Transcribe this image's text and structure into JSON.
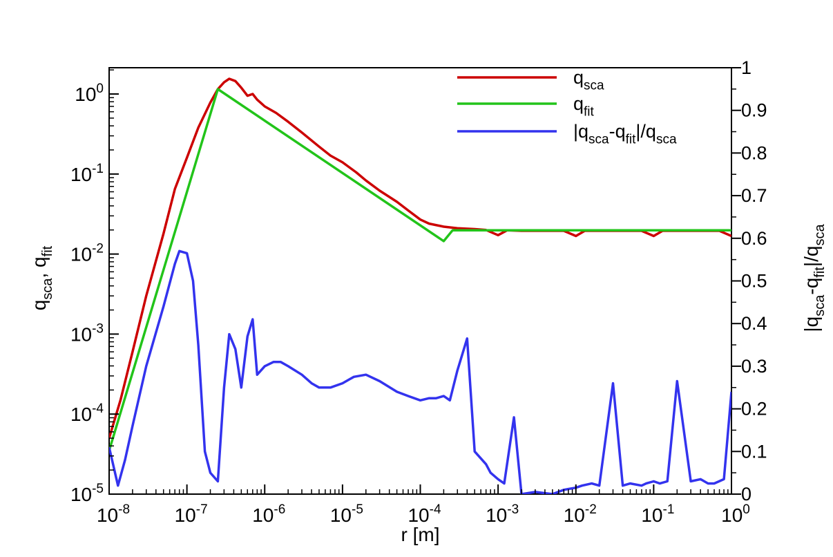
{
  "chart_data": {
    "type": "line",
    "xlabel": "r [m]",
    "ylabel_left": {
      "parts": [
        [
          "q",
          0
        ],
        [
          "sca",
          1
        ],
        [
          ", q",
          0
        ],
        [
          "fit",
          1
        ]
      ]
    },
    "ylabel_right": {
      "parts": [
        [
          "|q",
          0
        ],
        [
          "sca",
          1
        ],
        [
          "-q",
          0
        ],
        [
          "fit",
          1
        ],
        [
          "|/q",
          0
        ],
        [
          "sca",
          1
        ]
      ]
    },
    "x_scale": "log",
    "xlim": [
      1e-08,
      1
    ],
    "x_ticks": [
      {
        "value": 1e-08,
        "base": "10",
        "exp": "-8"
      },
      {
        "value": 1e-07,
        "base": "10",
        "exp": "-7"
      },
      {
        "value": 1e-06,
        "base": "10",
        "exp": "-6"
      },
      {
        "value": 1e-05,
        "base": "10",
        "exp": "-5"
      },
      {
        "value": 0.0001,
        "base": "10",
        "exp": "-4"
      },
      {
        "value": 0.001,
        "base": "10",
        "exp": "-3"
      },
      {
        "value": 0.01,
        "base": "10",
        "exp": "-2"
      },
      {
        "value": 0.1,
        "base": "10",
        "exp": "-1"
      },
      {
        "value": 1,
        "base": "10",
        "exp": "0"
      }
    ],
    "y_left_scale": "log",
    "y_left_lim": [
      1e-05,
      2.13
    ],
    "y_left_ticks": [
      {
        "value": 1e-05,
        "base": "10",
        "exp": "-5"
      },
      {
        "value": 0.0001,
        "base": "10",
        "exp": "-4"
      },
      {
        "value": 0.001,
        "base": "10",
        "exp": "-3"
      },
      {
        "value": 0.01,
        "base": "10",
        "exp": "-2"
      },
      {
        "value": 0.1,
        "base": "10",
        "exp": "-1"
      },
      {
        "value": 1,
        "base": "10",
        "exp": "0"
      }
    ],
    "y_right_scale": "linear",
    "y_right_lim": [
      0,
      1
    ],
    "y_right_ticks": [
      "0",
      "0.1",
      "0.2",
      "0.3",
      "0.4",
      "0.5",
      "0.6",
      "0.7",
      "0.8",
      "0.9",
      "1"
    ],
    "y_right_tick_values": [
      0,
      0.1,
      0.2,
      0.3,
      0.4,
      0.5,
      0.6,
      0.7,
      0.8,
      0.9,
      1
    ],
    "grid": false,
    "legend_position": "top-right",
    "series": [
      {
        "name_parts": [
          [
            "q",
            0
          ],
          [
            "sca",
            1
          ]
        ],
        "color": "#cc0000",
        "axis": "left",
        "x": [
          1e-08,
          1.4e-08,
          2e-08,
          3e-08,
          5e-08,
          7e-08,
          1e-07,
          1.4e-07,
          2e-07,
          2.5e-07,
          3e-07,
          3.5e-07,
          4.2e-07,
          5e-07,
          6e-07,
          7e-07,
          8e-07,
          1e-06,
          1.4e-06,
          2e-06,
          3e-06,
          5e-06,
          7e-06,
          1e-05,
          1.5e-05,
          2e-05,
          3e-05,
          5e-05,
          7e-05,
          0.0001,
          0.00013,
          0.0002,
          0.0003,
          0.0005,
          0.0007,
          0.001,
          0.0013,
          0.002,
          0.003,
          0.005,
          0.007,
          0.01,
          0.013,
          0.02,
          0.03,
          0.05,
          0.07,
          0.1,
          0.13,
          0.2,
          0.3,
          0.5,
          0.7,
          1
        ],
        "y": [
          5e-05,
          0.00015,
          0.0006,
          0.003,
          0.018,
          0.065,
          0.16,
          0.38,
          0.78,
          1.15,
          1.4,
          1.55,
          1.45,
          1.2,
          0.95,
          1.0,
          0.85,
          0.7,
          0.58,
          0.45,
          0.33,
          0.22,
          0.17,
          0.14,
          0.105,
          0.083,
          0.062,
          0.045,
          0.035,
          0.027,
          0.024,
          0.022,
          0.021,
          0.0205,
          0.02,
          0.0172,
          0.0198,
          0.0195,
          0.0195,
          0.0195,
          0.0195,
          0.0168,
          0.0195,
          0.0195,
          0.0195,
          0.0195,
          0.0195,
          0.0168,
          0.0195,
          0.0195,
          0.0195,
          0.0195,
          0.0195,
          0.0168
        ]
      },
      {
        "name_parts": [
          [
            "q",
            0
          ],
          [
            "fit",
            1
          ]
        ],
        "color": "#22c41a",
        "axis": "left",
        "x": [
          1e-08,
          2.5e-07,
          0.0002,
          0.00026,
          1
        ],
        "y": [
          3.5e-05,
          1.15,
          0.0145,
          0.0198,
          0.0198
        ]
      },
      {
        "name_parts": [
          [
            "|q",
            0
          ],
          [
            "sca",
            1
          ],
          [
            "-q",
            0
          ],
          [
            "fit",
            1
          ],
          [
            "|/q",
            0
          ],
          [
            "sca",
            1
          ]
        ],
        "color": "#3333ee",
        "axis": "right",
        "x": [
          1e-08,
          1.3e-08,
          1.6e-08,
          2e-08,
          3e-08,
          5e-08,
          7e-08,
          8e-08,
          1e-07,
          1.2e-07,
          1.4e-07,
          1.7e-07,
          2e-07,
          2.5e-07,
          3e-07,
          3.5e-07,
          4.2e-07,
          5e-07,
          6e-07,
          7e-07,
          8e-07,
          1e-06,
          1.3e-06,
          1.6e-06,
          2e-06,
          3e-06,
          4e-06,
          5e-06,
          7e-06,
          1e-05,
          1.4e-05,
          2e-05,
          3e-05,
          5e-05,
          7e-05,
          0.0001,
          0.00013,
          0.00016,
          0.0002,
          0.00024,
          0.0003,
          0.0004,
          0.0005,
          0.0007,
          0.0008,
          0.001,
          0.0012,
          0.0016,
          0.002,
          0.003,
          0.005,
          0.007,
          0.008,
          0.01,
          0.012,
          0.016,
          0.02,
          0.03,
          0.04,
          0.05,
          0.07,
          0.08,
          0.1,
          0.12,
          0.15,
          0.2,
          0.3,
          0.4,
          0.5,
          0.6,
          0.8,
          1
        ],
        "y": [
          0.11,
          0.02,
          0.08,
          0.16,
          0.3,
          0.44,
          0.54,
          0.57,
          0.565,
          0.5,
          0.35,
          0.1,
          0.05,
          0.03,
          0.25,
          0.375,
          0.34,
          0.25,
          0.37,
          0.41,
          0.28,
          0.3,
          0.31,
          0.31,
          0.3,
          0.28,
          0.26,
          0.25,
          0.25,
          0.26,
          0.275,
          0.28,
          0.265,
          0.24,
          0.23,
          0.22,
          0.225,
          0.225,
          0.23,
          0.22,
          0.29,
          0.365,
          0.1,
          0.07,
          0.05,
          0.035,
          0.025,
          0.18,
          0.0,
          0.005,
          0.0,
          0.01,
          0.012,
          0.015,
          0.02,
          0.025,
          0.02,
          0.26,
          0.02,
          0.025,
          0.02,
          0.025,
          0.03,
          0.025,
          0.03,
          0.265,
          0.03,
          0.035,
          0.025,
          0.025,
          0.035,
          0.24
        ]
      }
    ]
  }
}
